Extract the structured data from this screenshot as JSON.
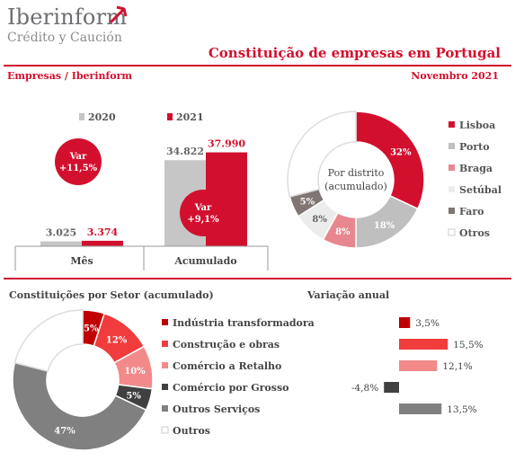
{
  "brand": {
    "name": "Iberinform",
    "subtitle": "Crédito y Caución"
  },
  "title": "Constituição de empresas em Portugal",
  "subheader": {
    "left": "Empresas / Iberinform",
    "right": "Novembro 2021"
  },
  "colors": {
    "accent": "#d2102e",
    "grey_bar": "#c6c6c6",
    "rule": "#d2102e"
  },
  "chart_data": [
    {
      "type": "bar",
      "categories": [
        "Mês",
        "Acumulado"
      ],
      "series": [
        {
          "name": "2020",
          "values": [
            3025,
            34822
          ],
          "labels": [
            "3.025",
            "34.822"
          ],
          "color": "#c6c6c6"
        },
        {
          "name": "2021",
          "values": [
            3374,
            37990
          ],
          "labels": [
            "3.374",
            "37.990"
          ],
          "color": "#d2102e"
        }
      ],
      "annotations": [
        {
          "text": "Var +11,5%",
          "category": "Mês"
        },
        {
          "text": "Var +9,1%",
          "category": "Acumulado"
        }
      ],
      "ylim": [
        0,
        40000
      ]
    },
    {
      "type": "pie",
      "title": "Por distrito (acumulado)",
      "labels": [
        "Lisboa",
        "Porto",
        "Braga",
        "Setúbal",
        "Faro",
        "Otros"
      ],
      "values": [
        32,
        18,
        8,
        8,
        5,
        29
      ],
      "value_labels": [
        "32%",
        "18%",
        "8%",
        "8%",
        "5%",
        ""
      ],
      "colors": [
        "#d2102e",
        "#bfbfbf",
        "#e8878f",
        "#ececec",
        "#7f7573",
        "#ffffff"
      ],
      "legend": "right"
    },
    {
      "type": "pie",
      "title": "Constituições por Setor (acumulado)",
      "labels": [
        "Indústria transformadora",
        "Construção e obras",
        "Comércio a Retalho",
        "Comércio por Grosso",
        "Outros Serviços",
        "Outros"
      ],
      "values": [
        5,
        12,
        10,
        5,
        47,
        21
      ],
      "value_labels": [
        "5%",
        "12%",
        "10%",
        "5%",
        "47%",
        ""
      ],
      "colors": [
        "#c00000",
        "#f03c3c",
        "#f28a8a",
        "#404040",
        "#808080",
        "#ffffff"
      ],
      "legend": "right"
    },
    {
      "type": "bar",
      "orientation": "horizontal",
      "title": "Variação anual",
      "categories": [
        "Indústria transformadora",
        "Construção e obras",
        "Comércio a Retalho",
        "Comércio por Grosso",
        "Outros Serviços"
      ],
      "values": [
        3.5,
        15.5,
        12.1,
        -4.8,
        13.5
      ],
      "value_labels": [
        "3,5%",
        "15,5%",
        "12,1%",
        "-4,8%",
        "13,5%"
      ],
      "colors": [
        "#c00000",
        "#f03c3c",
        "#f28a8a",
        "#404040",
        "#808080"
      ],
      "xlim": [
        -4.8,
        15.5
      ]
    }
  ]
}
